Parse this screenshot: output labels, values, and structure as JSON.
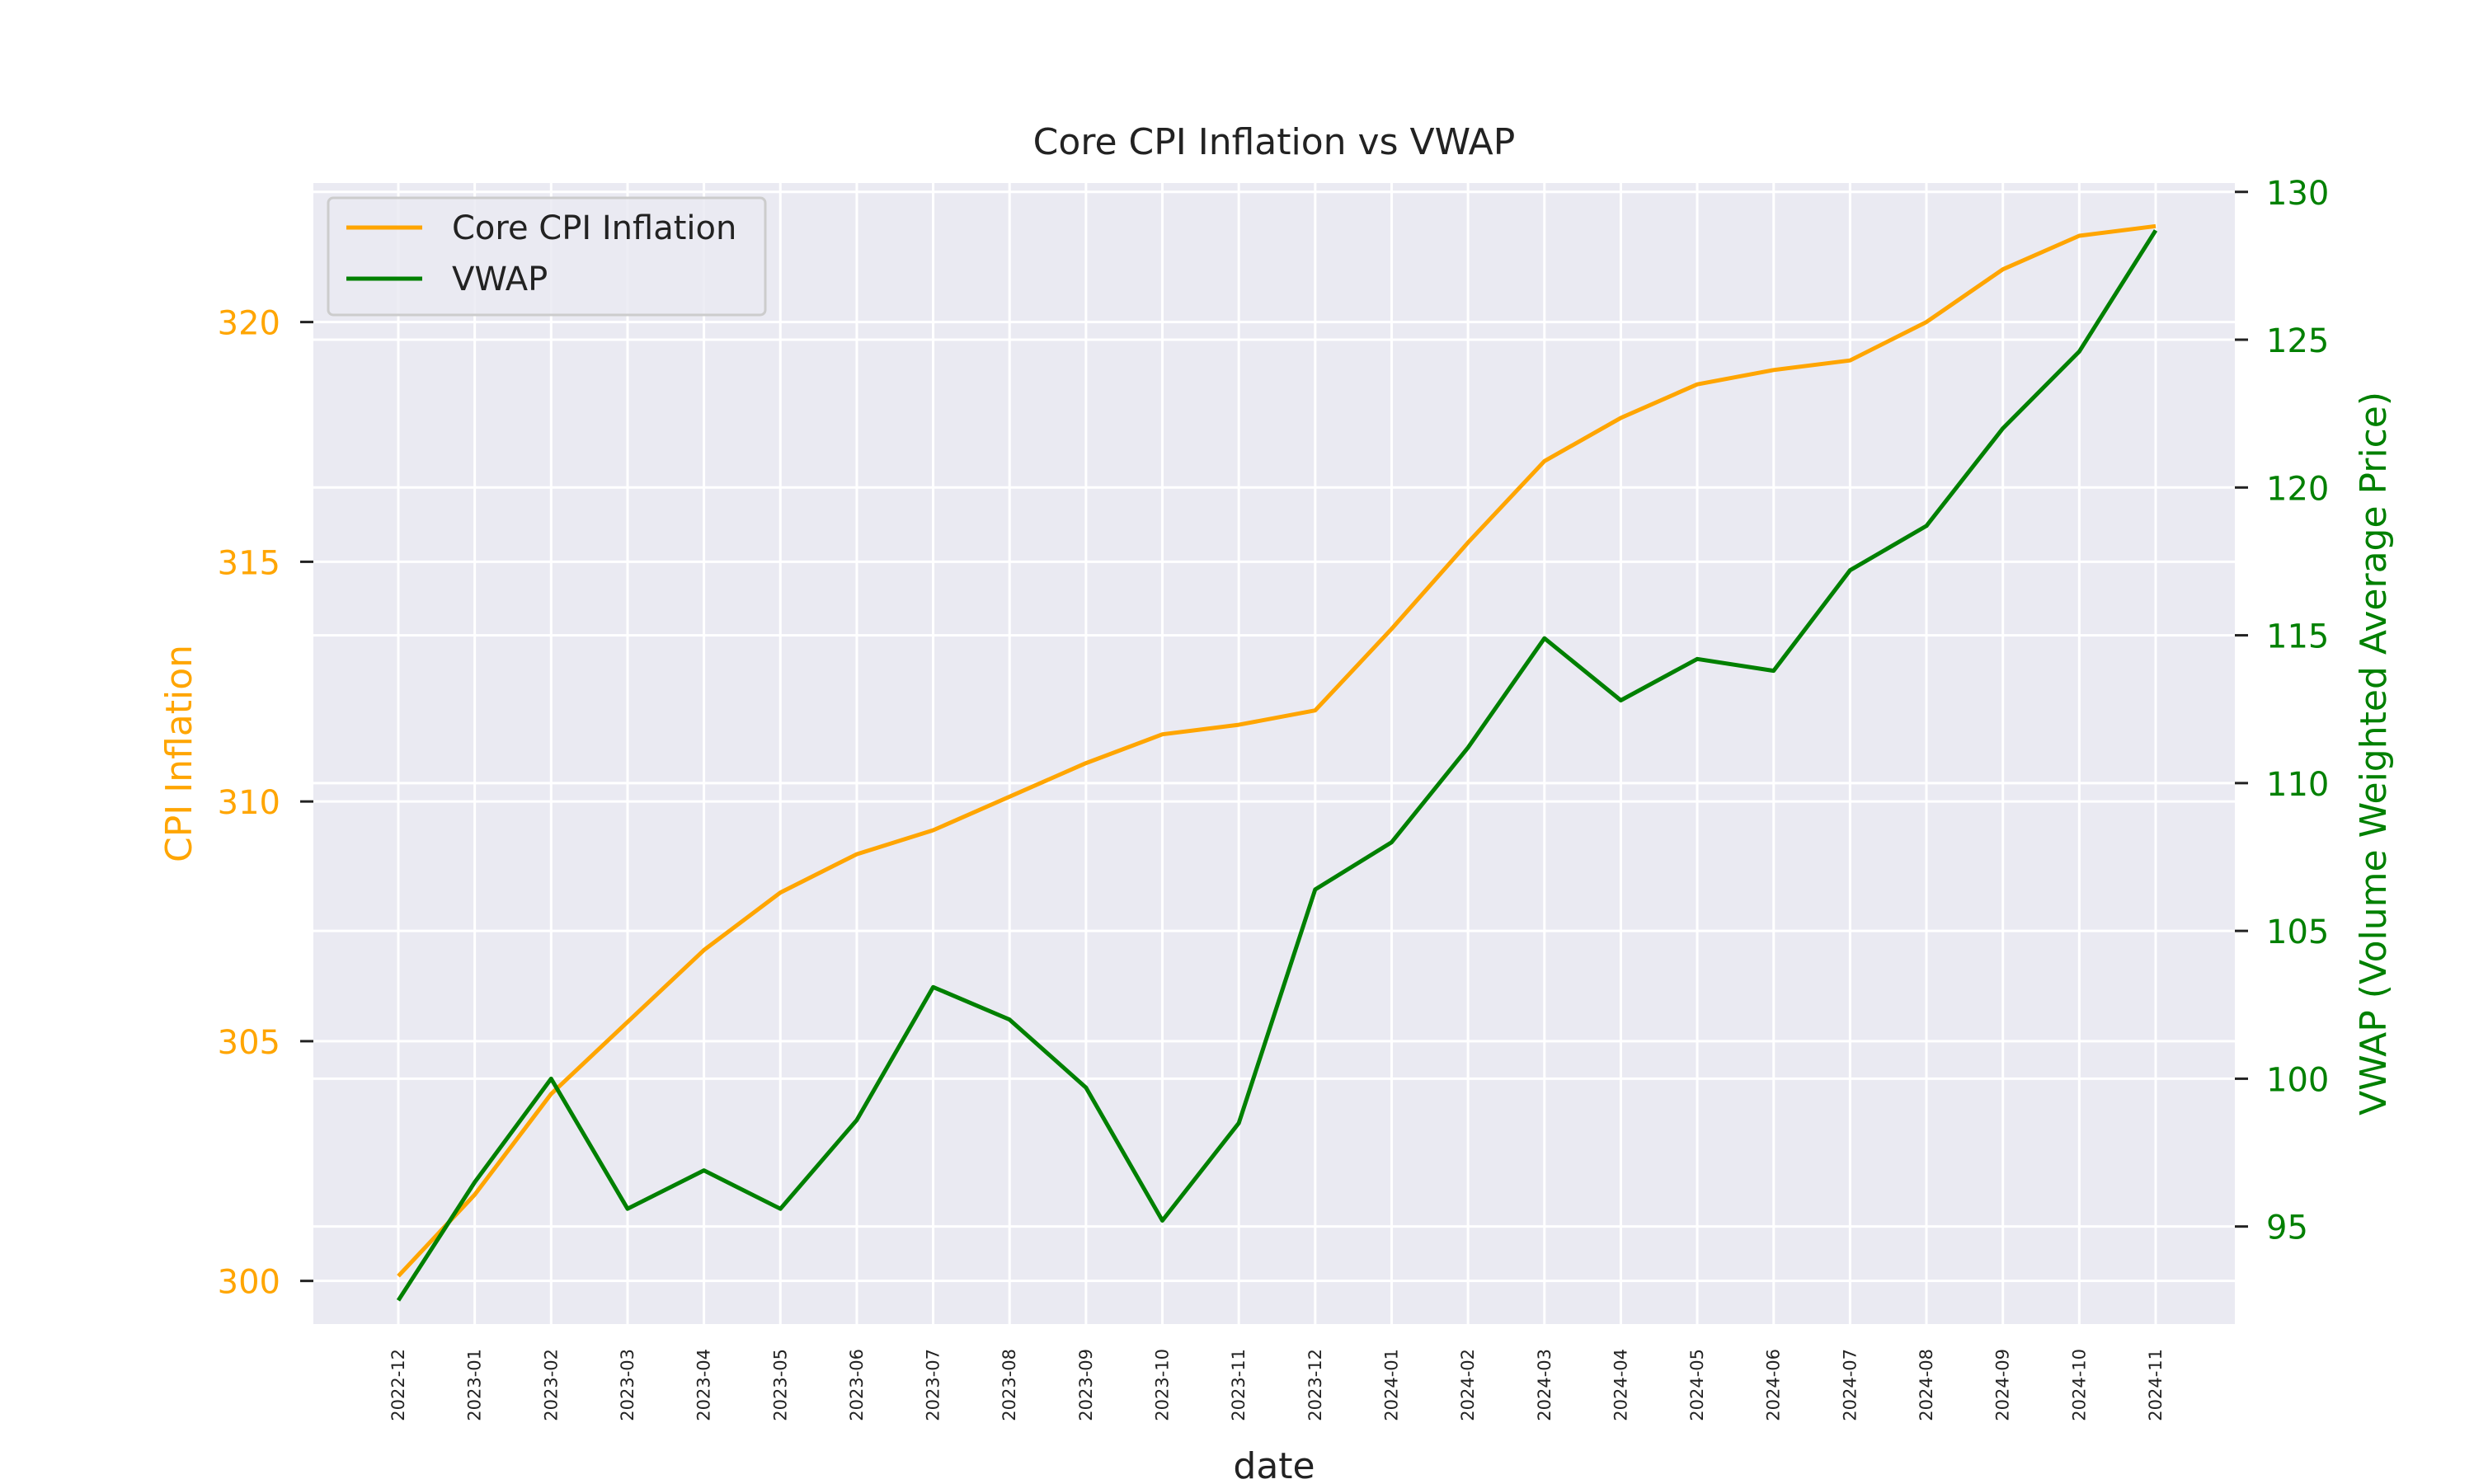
{
  "chart_data": {
    "type": "line",
    "title": "Core CPI Inflation vs VWAP",
    "xlabel": "date",
    "ylabel_left": "CPI Inflation",
    "ylabel_right": "VWAP (Volume Weighted Average Price)",
    "x": [
      "2022-12",
      "2023-01",
      "2023-02",
      "2023-03",
      "2023-04",
      "2023-05",
      "2023-06",
      "2023-07",
      "2023-08",
      "2023-09",
      "2023-10",
      "2023-11",
      "2023-12",
      "2024-01",
      "2024-02",
      "2024-03",
      "2024-04",
      "2024-05",
      "2024-06",
      "2024-07",
      "2024-08",
      "2024-09",
      "2024-10",
      "2024-11"
    ],
    "ylim_left": [
      299.1,
      322.9
    ],
    "yticks_left": [
      300,
      305,
      310,
      315,
      320
    ],
    "ylim_right": [
      91.7,
      130.3
    ],
    "yticks_right": [
      95,
      100,
      105,
      110,
      115,
      120,
      125,
      130
    ],
    "series": [
      {
        "name": "Core CPI Inflation",
        "axis": "left",
        "color": "#FFA500",
        "values": [
          300.1,
          301.8,
          303.9,
          305.4,
          306.9,
          308.1,
          308.9,
          309.4,
          310.1,
          310.8,
          311.4,
          311.6,
          311.9,
          313.6,
          315.4,
          317.1,
          318.0,
          318.7,
          319.0,
          319.2,
          320.0,
          321.1,
          321.8,
          322.0
        ]
      },
      {
        "name": "VWAP",
        "axis": "right",
        "color": "#008000",
        "values": [
          92.5,
          96.5,
          100.0,
          95.6,
          96.9,
          95.6,
          98.6,
          103.1,
          102.0,
          99.7,
          95.2,
          98.5,
          106.4,
          108.0,
          111.2,
          114.9,
          112.8,
          114.2,
          113.8,
          117.2,
          118.7,
          122.0,
          124.6,
          128.7
        ]
      }
    ],
    "legend": "top-left",
    "grid": true,
    "colors": {
      "left_axis": "#FFA500",
      "right_axis": "#008000",
      "plot_bg": "#EAEAF2",
      "grid": "#FFFFFF"
    }
  }
}
